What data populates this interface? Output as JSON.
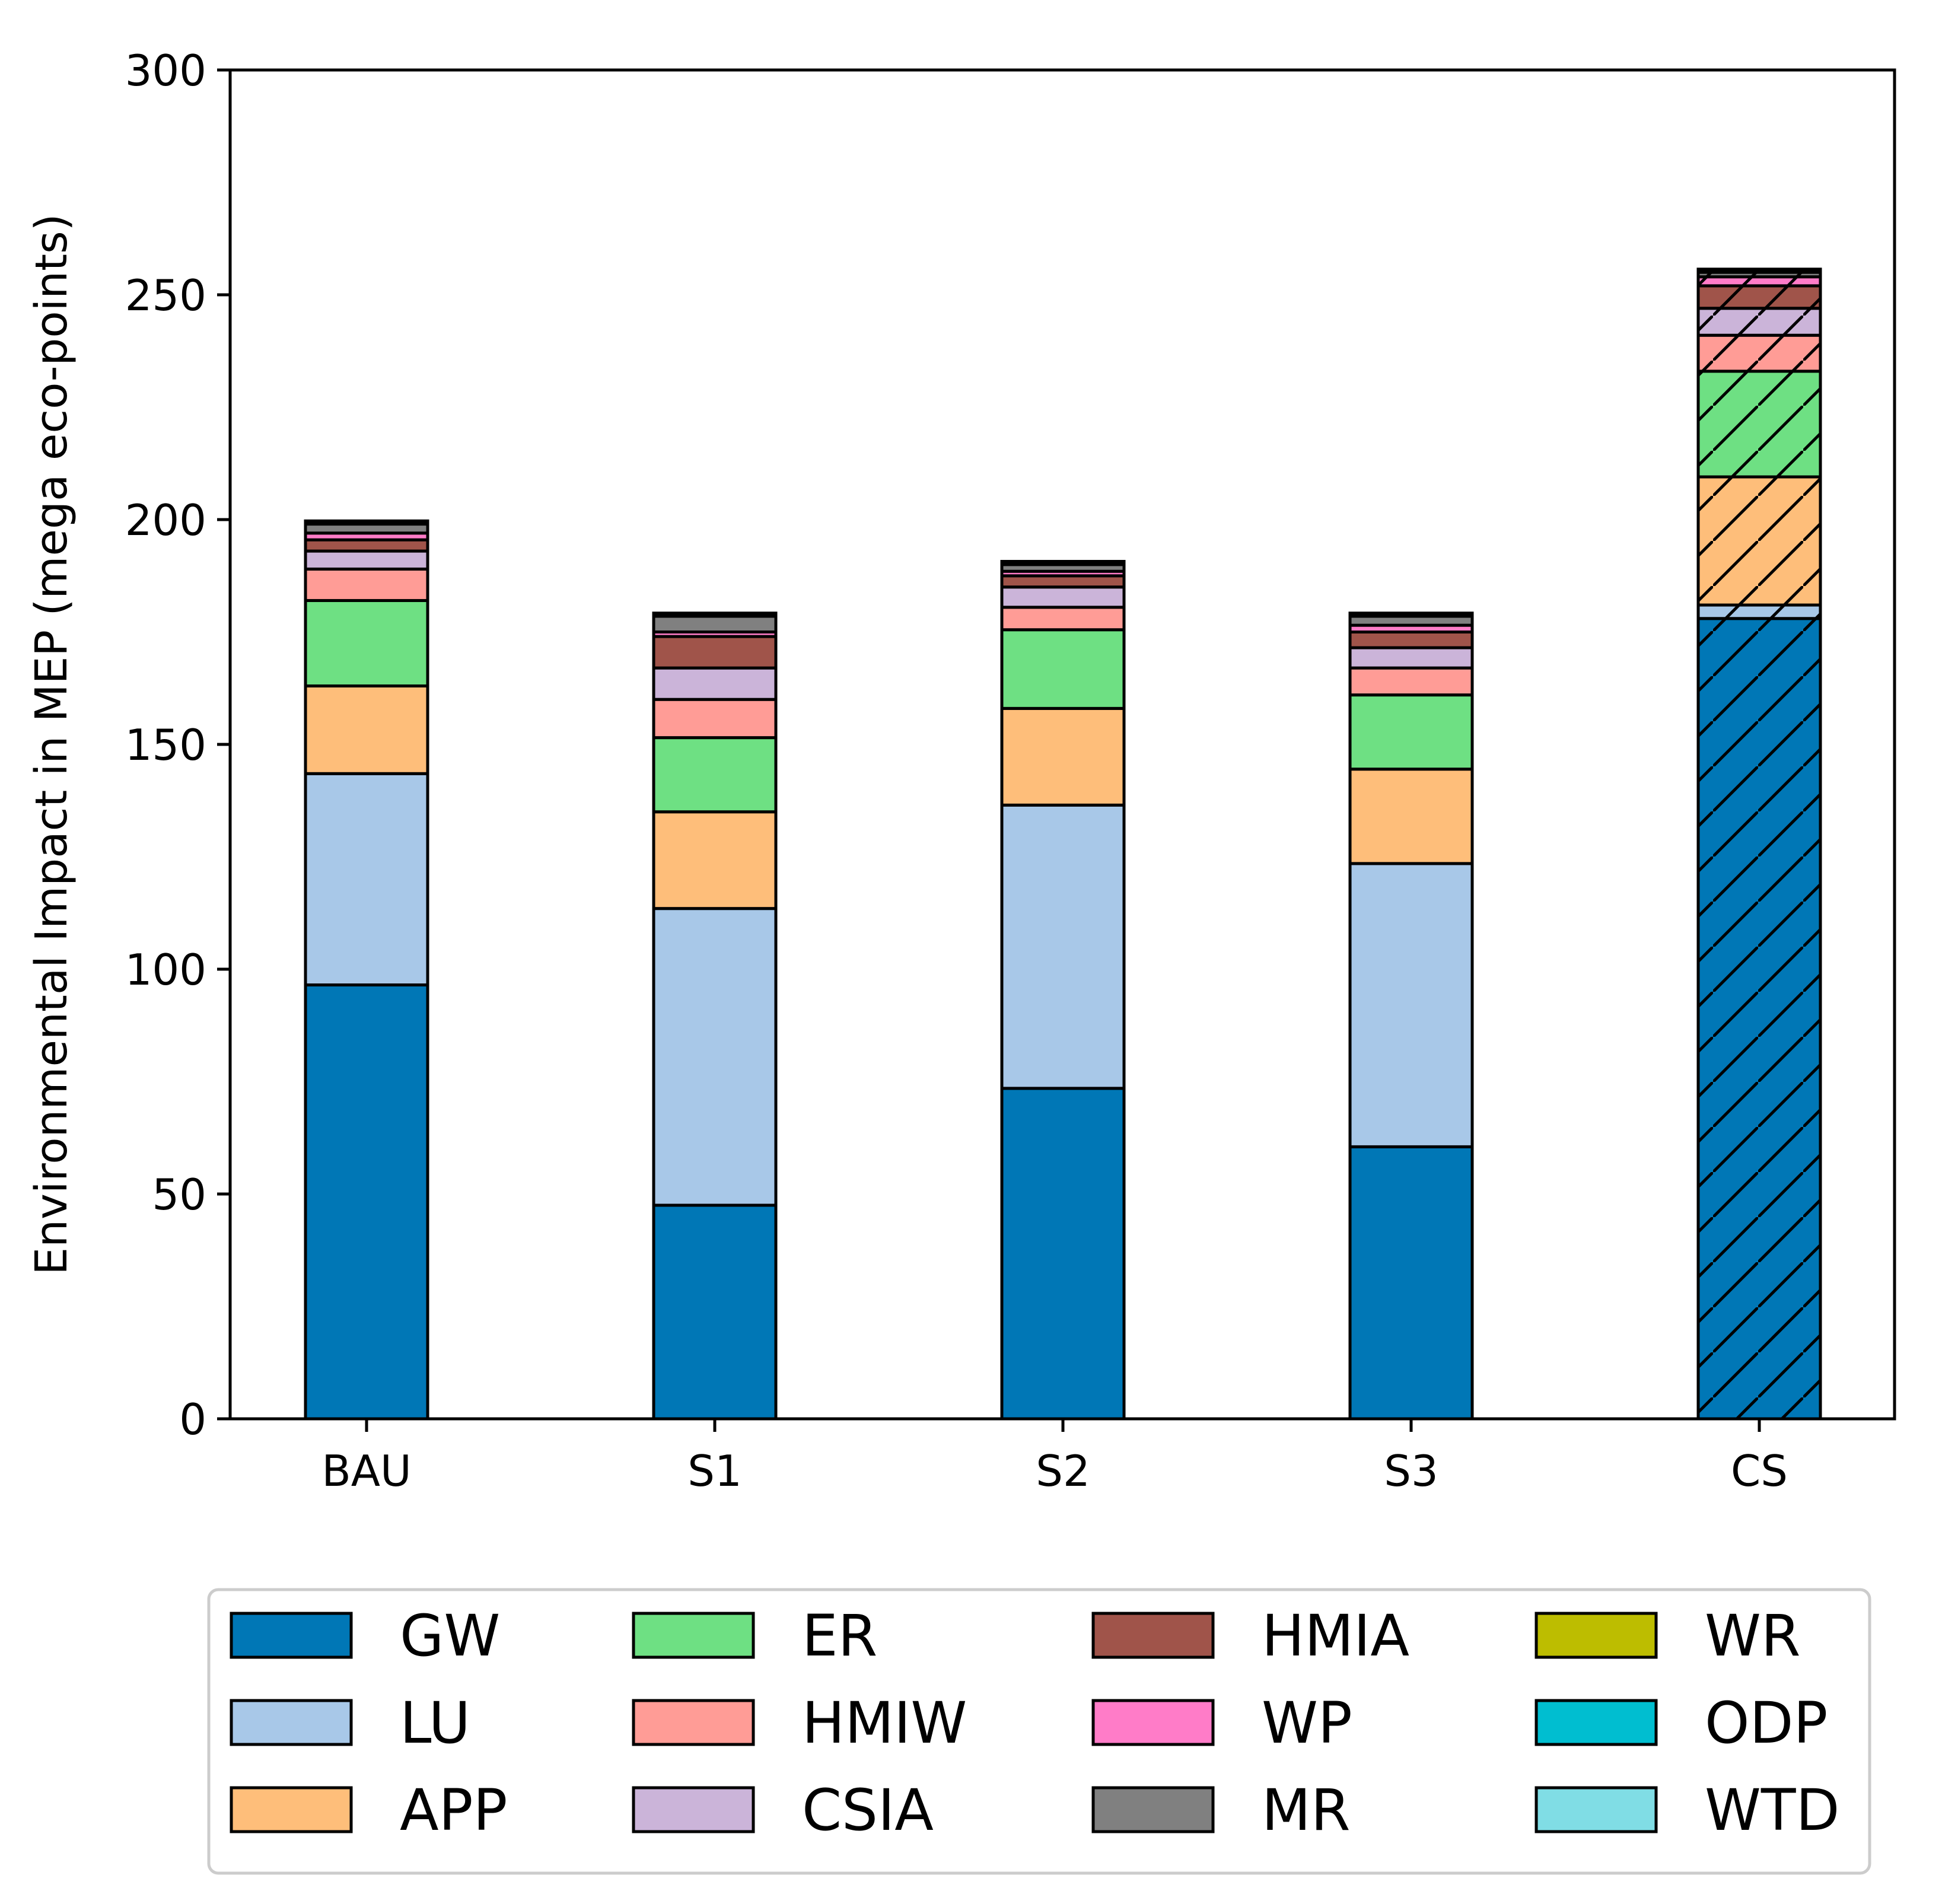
{
  "chart_data": {
    "type": "bar",
    "stacked": true,
    "title": "",
    "xlabel": "",
    "ylabel": "Environmental Impact in MEP (mega eco-points)",
    "ylim": [
      0,
      300
    ],
    "yticks": [
      0,
      50,
      100,
      150,
      200,
      250,
      300
    ],
    "categories": [
      "BAU",
      "S1",
      "S2",
      "S3",
      "CS"
    ],
    "hatched_categories": [
      "CS"
    ],
    "legend_position": "bottom",
    "series": [
      {
        "name": "GW",
        "color": "#0077B6",
        "values": [
          96.5,
          47.5,
          73.5,
          60.5,
          178.0
        ]
      },
      {
        "name": "LU",
        "color": "#A8C8E8",
        "values": [
          47.0,
          66.0,
          63.0,
          63.0,
          3.0
        ]
      },
      {
        "name": "APP",
        "color": "#FEBE7A",
        "values": [
          19.5,
          21.5,
          21.5,
          21.0,
          28.5
        ]
      },
      {
        "name": "ER",
        "color": "#6EE083",
        "values": [
          19.0,
          16.5,
          17.5,
          16.5,
          23.5
        ]
      },
      {
        "name": "HMIW",
        "color": "#FF9C96",
        "values": [
          7.0,
          8.5,
          5.0,
          6.0,
          8.0
        ]
      },
      {
        "name": "CSIA",
        "color": "#CBB4D9",
        "values": [
          4.0,
          7.0,
          4.5,
          4.5,
          6.0
        ]
      },
      {
        "name": "HMIA",
        "color": "#A0544A",
        "values": [
          2.5,
          7.0,
          2.5,
          3.5,
          5.0
        ]
      },
      {
        "name": "WP",
        "color": "#FF7CC8",
        "values": [
          1.5,
          1.0,
          1.0,
          1.5,
          2.0
        ]
      },
      {
        "name": "MR",
        "color": "#808080",
        "values": [
          2.0,
          3.5,
          1.5,
          2.0,
          1.0
        ]
      },
      {
        "name": "WR",
        "color": "#BDBD00",
        "values": [
          0.3,
          0.3,
          0.3,
          0.3,
          0.3
        ]
      },
      {
        "name": "ODP",
        "color": "#00BED0",
        "values": [
          0.2,
          0.2,
          0.2,
          0.2,
          0.2
        ]
      },
      {
        "name": "WTD",
        "color": "#80DDE5",
        "values": [
          0.2,
          0.2,
          0.2,
          0.2,
          0.2
        ]
      }
    ]
  }
}
